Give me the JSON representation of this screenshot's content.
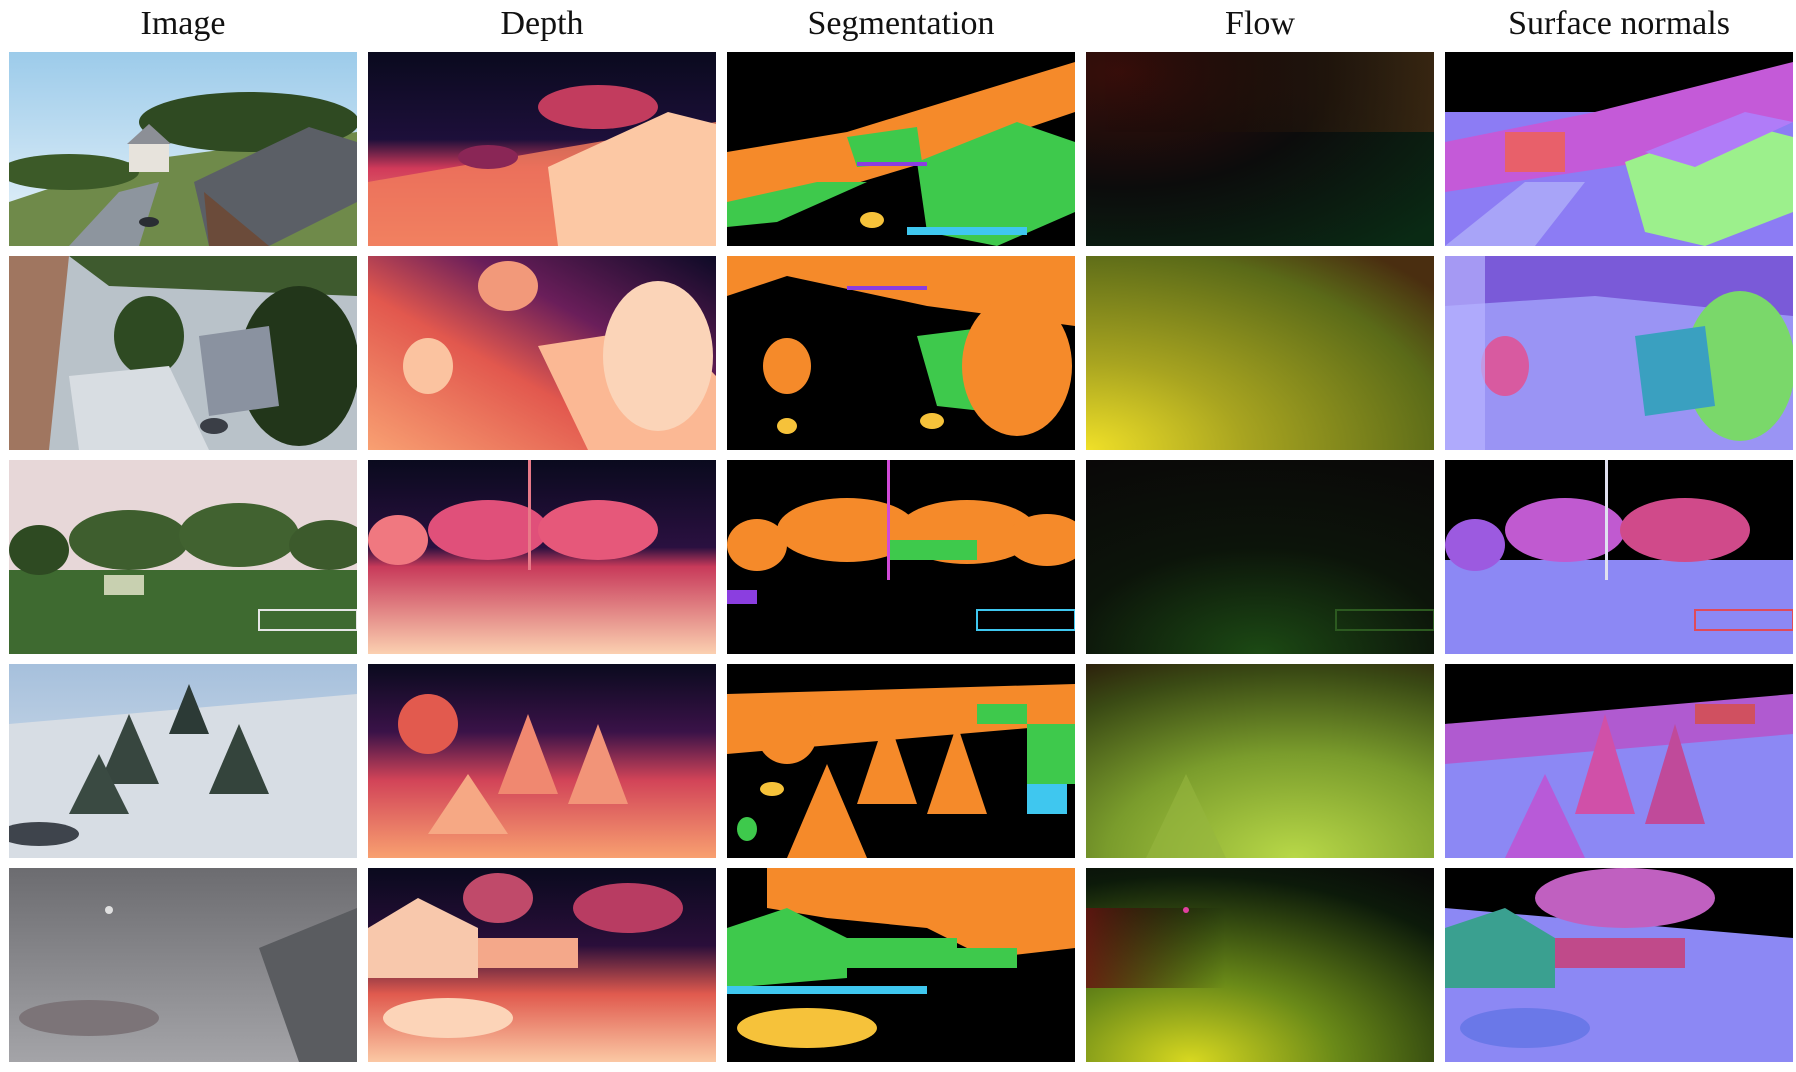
{
  "headers": [
    "Image",
    "Depth",
    "Segmentation",
    "Flow",
    "Surface normals"
  ],
  "rows": [
    {
      "scene": "suburb-sunny"
    },
    {
      "scene": "suburb-aerial-shadows"
    },
    {
      "scene": "park-soccer-field"
    },
    {
      "scene": "snowy-pines"
    },
    {
      "scene": "foggy-street-car"
    }
  ]
}
